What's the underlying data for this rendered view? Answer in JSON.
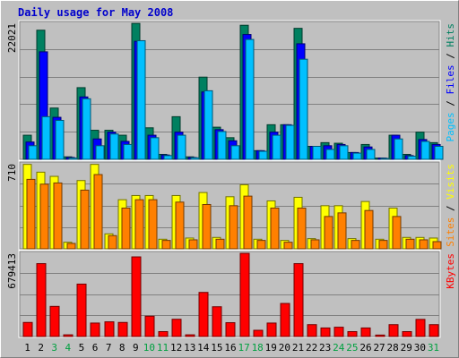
{
  "chart_data": [
    {
      "type": "bar",
      "title": "Daily usage for May 2008",
      "title_color": "#0000cc",
      "background": "#c0c0c0",
      "panel": "hits-files-pages",
      "ymax_label": "22021",
      "ymax": 22021,
      "legend_parts": [
        {
          "text": "Pages",
          "color": "#00c0ff"
        },
        {
          "text": " / ",
          "color": "#000000"
        },
        {
          "text": "Files",
          "color": "#0000ff"
        },
        {
          "text": " / ",
          "color": "#000000"
        },
        {
          "text": "Hits",
          "color": "#008060"
        }
      ],
      "categories": [
        "1",
        "2",
        "3",
        "4",
        "5",
        "6",
        "7",
        "8",
        "9",
        "10",
        "11",
        "12",
        "13",
        "14",
        "15",
        "16",
        "17",
        "18",
        "19",
        "20",
        "21",
        "22",
        "23",
        "24",
        "25",
        "26",
        "27",
        "28",
        "29",
        "30",
        "31"
      ],
      "weekend_days": [
        "3",
        "4",
        "10",
        "11",
        "17",
        "18",
        "24",
        "25",
        "31"
      ],
      "series": [
        {
          "name": "Hits",
          "color": "#008060",
          "values": [
            3900,
            20900,
            8300,
            400,
            11600,
            4700,
            4700,
            3900,
            22000,
            5100,
            800,
            6900,
            400,
            13300,
            5200,
            3500,
            21700,
            1400,
            5600,
            5600,
            21200,
            2100,
            2700,
            2600,
            1100,
            2400,
            200,
            3900,
            800,
            4400,
            2700
          ]
        },
        {
          "name": "Files",
          "color": "#0000ff",
          "values": [
            2800,
            17400,
            6800,
            300,
            10100,
            3300,
            4400,
            2900,
            19100,
            3900,
            700,
            4400,
            300,
            10900,
            4800,
            3000,
            20200,
            1400,
            4400,
            5600,
            18700,
            2100,
            2200,
            2400,
            1100,
            2000,
            200,
            3900,
            600,
            3200,
            2400
          ]
        },
        {
          "name": "Pages",
          "color": "#00c0ff",
          "values": [
            2200,
            6900,
            6300,
            200,
            9800,
            2200,
            4100,
            2400,
            19200,
            3500,
            600,
            3900,
            250,
            11100,
            4500,
            2200,
            19400,
            1300,
            3900,
            5500,
            16200,
            2100,
            1600,
            2200,
            1000,
            1600,
            150,
            3300,
            500,
            2900,
            2100
          ]
        }
      ]
    },
    {
      "type": "bar",
      "panel": "visits-sites",
      "ymax_label": "710",
      "ymax": 710,
      "legend_parts": [
        {
          "text": "Sites",
          "color": "#ff8000"
        },
        {
          "text": " / ",
          "color": "#000000"
        },
        {
          "text": "Visits",
          "color": "#ffff00"
        }
      ],
      "categories": [
        "1",
        "2",
        "3",
        "4",
        "5",
        "6",
        "7",
        "8",
        "9",
        "10",
        "11",
        "12",
        "13",
        "14",
        "15",
        "16",
        "17",
        "18",
        "19",
        "20",
        "21",
        "22",
        "23",
        "24",
        "25",
        "26",
        "27",
        "28",
        "29",
        "30",
        "31"
      ],
      "series": [
        {
          "name": "Visits",
          "color": "#ffff00",
          "values": [
            705,
            640,
            605,
            55,
            570,
            705,
            125,
            410,
            445,
            445,
            80,
            445,
            90,
            470,
            95,
            435,
            535,
            80,
            400,
            70,
            430,
            85,
            360,
            360,
            85,
            395,
            80,
            340,
            95,
            95,
            90
          ]
        },
        {
          "name": "Sites",
          "color": "#ff8000",
          "values": [
            580,
            540,
            550,
            45,
            490,
            620,
            110,
            340,
            410,
            410,
            70,
            390,
            75,
            370,
            80,
            360,
            440,
            70,
            340,
            55,
            340,
            75,
            270,
            300,
            70,
            320,
            70,
            270,
            80,
            75,
            60
          ]
        }
      ]
    },
    {
      "type": "bar",
      "panel": "kbytes",
      "ymax_label": "679413",
      "ymax": 679413,
      "legend_parts": [
        {
          "text": "KBytes",
          "color": "#ff0000"
        }
      ],
      "categories": [
        "1",
        "2",
        "3",
        "4",
        "5",
        "6",
        "7",
        "8",
        "9",
        "10",
        "11",
        "12",
        "13",
        "14",
        "15",
        "16",
        "17",
        "18",
        "19",
        "20",
        "21",
        "22",
        "23",
        "24",
        "25",
        "26",
        "27",
        "28",
        "29",
        "30",
        "31"
      ],
      "series": [
        {
          "name": "KBytes",
          "color": "#ff0000",
          "values": [
            115000,
            595000,
            246000,
            14000,
            428000,
            110000,
            120000,
            115000,
            650000,
            166000,
            40000,
            141000,
            14000,
            360000,
            243000,
            113000,
            679000,
            51000,
            110000,
            270000,
            595000,
            97000,
            70000,
            76000,
            40000,
            70000,
            12000,
            97000,
            40000,
            140000,
            97000
          ]
        }
      ]
    }
  ]
}
